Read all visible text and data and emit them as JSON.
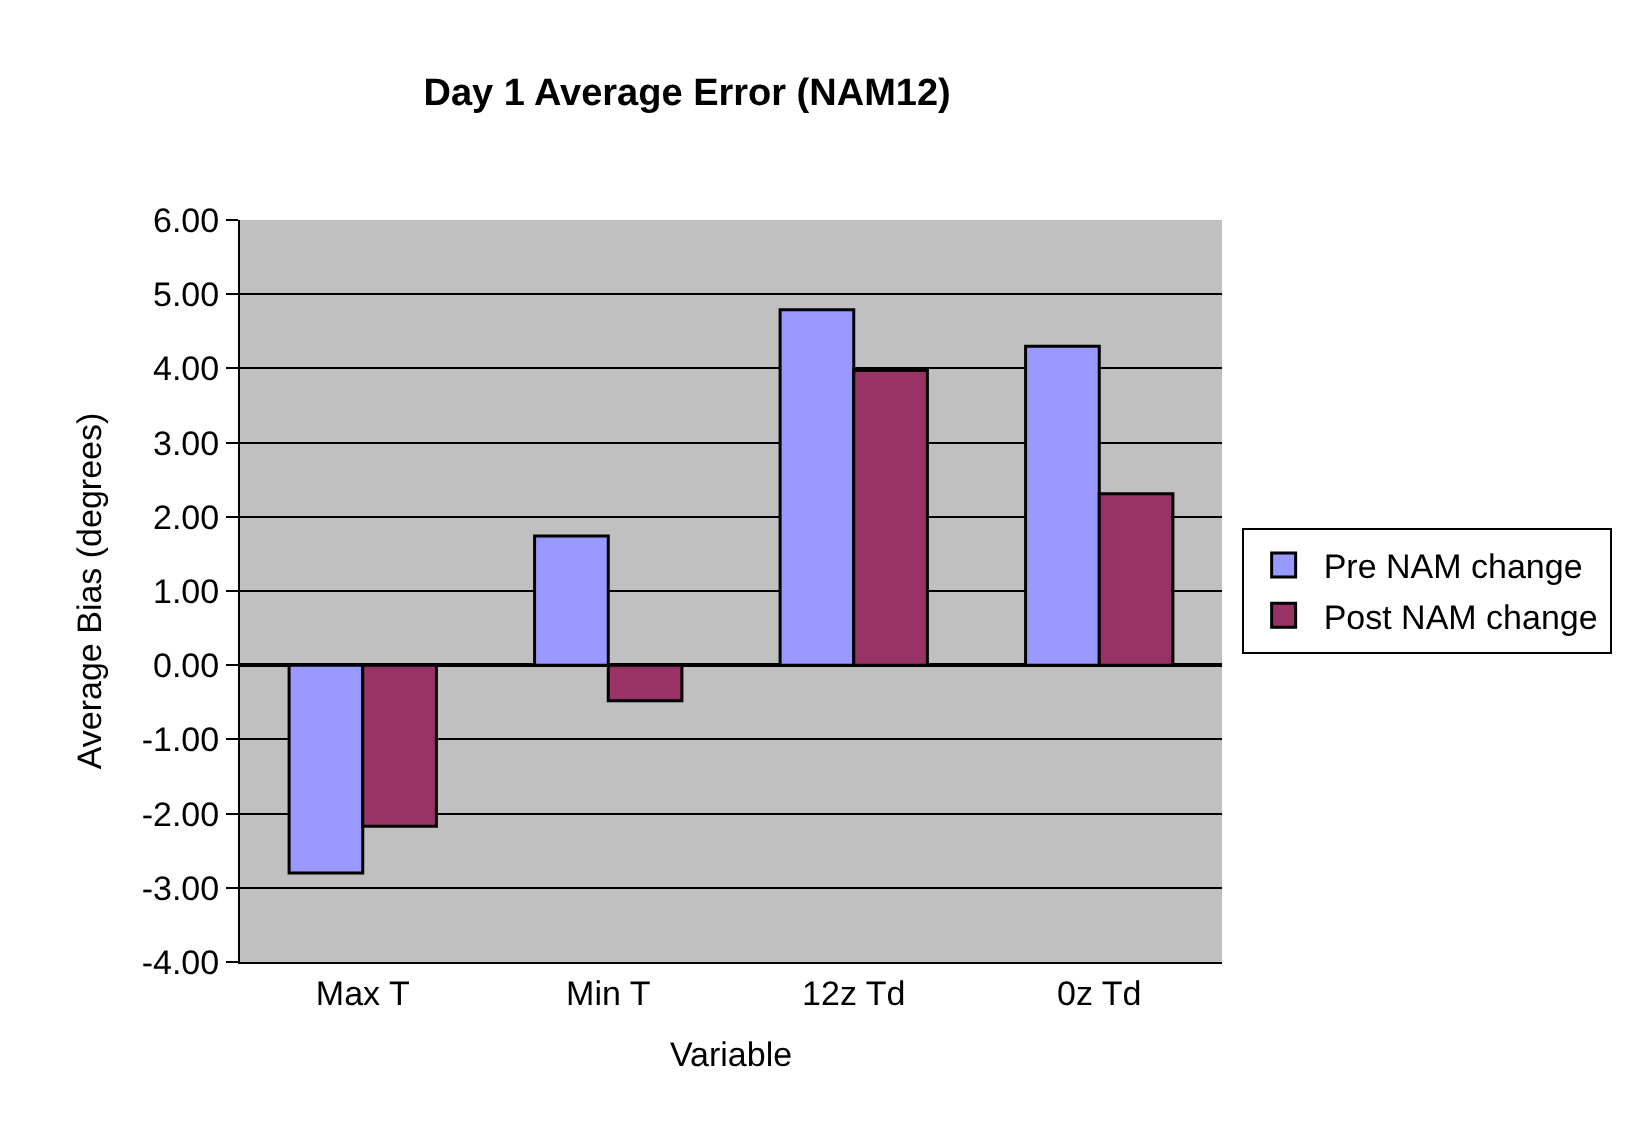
{
  "chart_data": {
    "type": "bar",
    "title": "Day 1 Average Error (NAM12)",
    "xlabel": "Variable",
    "ylabel": "Average Bias (degrees)",
    "categories": [
      "Max T",
      "Min T",
      "12z Td",
      "0z Td"
    ],
    "series": [
      {
        "name": "Pre NAM change",
        "color": "#9999ff",
        "values": [
          -2.8,
          1.74,
          4.79,
          4.3
        ]
      },
      {
        "name": "Post NAM change",
        "color": "#993366",
        "values": [
          -2.17,
          -0.48,
          3.97,
          2.31
        ]
      }
    ],
    "ylim": [
      -4,
      6
    ],
    "yticks": [
      {
        "value": -4,
        "label": "-4.00"
      },
      {
        "value": -3,
        "label": "-3.00"
      },
      {
        "value": -2,
        "label": "-2.00"
      },
      {
        "value": -1,
        "label": "-1.00"
      },
      {
        "value": 0,
        "label": "0.00"
      },
      {
        "value": 1,
        "label": "1.00"
      },
      {
        "value": 2,
        "label": "2.00"
      },
      {
        "value": 3,
        "label": "3.00"
      },
      {
        "value": 4,
        "label": "4.00"
      },
      {
        "value": 5,
        "label": "5.00"
      },
      {
        "value": 6,
        "label": "6.00"
      }
    ],
    "grid": "y",
    "legend": "right"
  }
}
